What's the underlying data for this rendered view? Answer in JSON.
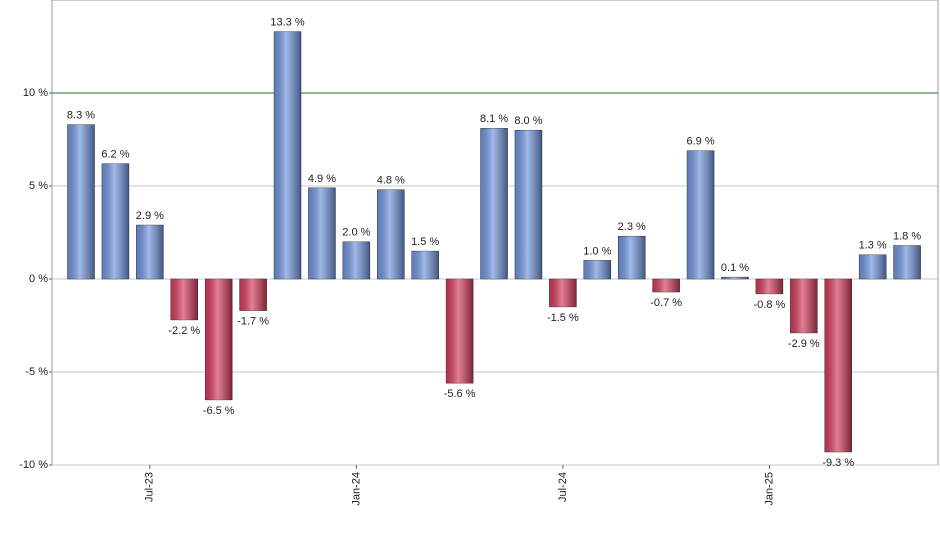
{
  "chart_data": {
    "type": "bar",
    "categories": [
      null,
      null,
      "Jul-23",
      null,
      null,
      null,
      null,
      null,
      "Jan-24",
      null,
      null,
      null,
      null,
      null,
      "Jul-24",
      null,
      null,
      null,
      null,
      null,
      "Jan-25",
      null,
      null,
      null,
      null
    ],
    "values": [
      8.3,
      6.2,
      2.9,
      -2.2,
      -6.5,
      -1.7,
      13.3,
      4.9,
      2.0,
      4.8,
      1.5,
      -5.6,
      8.1,
      8.0,
      -1.5,
      1.0,
      2.3,
      -0.7,
      6.9,
      0.1,
      -0.8,
      -2.9,
      -9.3,
      1.3,
      1.8
    ],
    "value_labels": [
      "8.3 %",
      "6.2 %",
      "2.9 %",
      "-2.2 %",
      "-6.5 %",
      "-1.7 %",
      "13.3 %",
      "4.9 %",
      "2.0 %",
      "4.8 %",
      "1.5 %",
      "-5.6 %",
      "8.1 %",
      "8.0 %",
      "-1.5 %",
      "1.0 %",
      "2.3 %",
      "-0.7 %",
      "6.9 %",
      "0.1 %",
      "-0.8 %",
      "-2.9 %",
      "-9.3 %",
      "1.3 %",
      "1.8 %"
    ],
    "ylim": [
      -10,
      15
    ],
    "yticks": [
      {
        "value": -10,
        "label": "-10 %"
      },
      {
        "value": -5,
        "label": "-5 %"
      },
      {
        "value": 0,
        "label": "0 %"
      },
      {
        "value": 5,
        "label": "5 %"
      },
      {
        "value": 10,
        "label": "10 %"
      }
    ],
    "grid": true,
    "grid_color": "#c8c8c8",
    "highlight_tick": 4,
    "highlight_color": "#2e6b2e",
    "positive_color": "#6f93dc",
    "negative_color": "#d23a5a"
  }
}
